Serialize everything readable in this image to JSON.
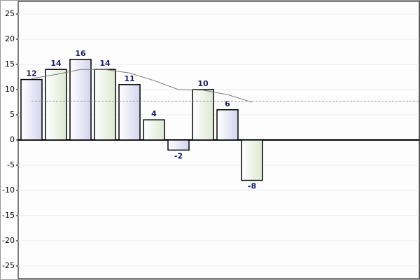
{
  "chart_data": {
    "type": "bar",
    "categories": [
      null,
      null,
      null,
      null,
      null,
      null,
      null,
      null,
      null,
      null
    ],
    "values": [
      12,
      14,
      16,
      14,
      11,
      4,
      -2,
      10,
      6,
      -8
    ],
    "colors": [
      "#d4d4ee",
      "#dce8d2"
    ],
    "ylim": [
      -27.5,
      27.5
    ],
    "yticks": [
      -25,
      -20,
      -15,
      -10,
      -5,
      0,
      5,
      10,
      15,
      20,
      25
    ],
    "grid": true,
    "trend": {
      "color": "#777777",
      "values": [
        12.2,
        13,
        14,
        14,
        13.3,
        11.8,
        10,
        9.9,
        9,
        7.5
      ]
    },
    "average": {
      "color": "#999999",
      "value": 7.7
    }
  }
}
